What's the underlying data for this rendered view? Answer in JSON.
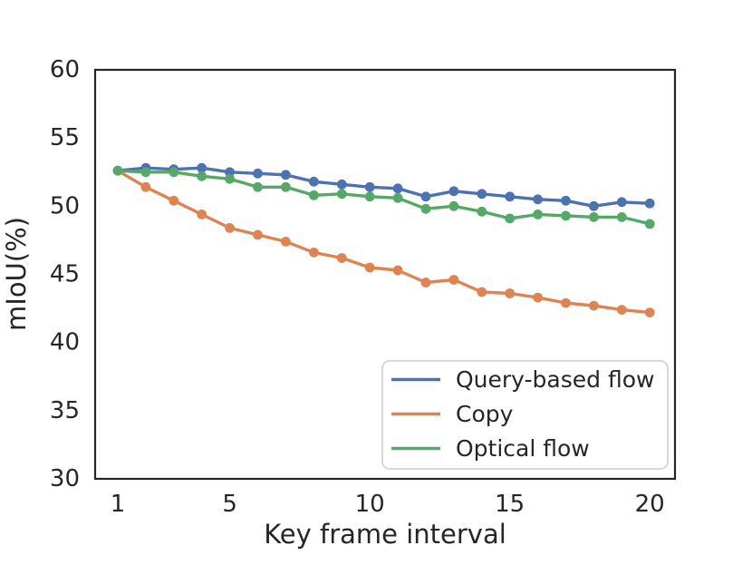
{
  "chart_data": {
    "type": "line",
    "title": "",
    "xlabel": "Key frame interval",
    "ylabel": "mIoU(%)",
    "xlim": [
      0.19,
      20.9
    ],
    "ylim": [
      30,
      60
    ],
    "xticks": [
      1,
      5,
      10,
      15,
      20
    ],
    "yticks": [
      30,
      35,
      40,
      45,
      50,
      55,
      60
    ],
    "grid": false,
    "legend_position": "lower right",
    "x": [
      1,
      2,
      3,
      4,
      5,
      6,
      7,
      8,
      9,
      10,
      11,
      12,
      13,
      14,
      15,
      16,
      17,
      18,
      19,
      20
    ],
    "series": [
      {
        "name": "Query-based flow",
        "color": "#4C72B0",
        "values": [
          52.6,
          52.8,
          52.7,
          52.8,
          52.5,
          52.4,
          52.3,
          51.8,
          51.6,
          51.4,
          51.3,
          50.7,
          51.1,
          50.9,
          50.7,
          50.5,
          50.4,
          50.0,
          50.3,
          50.2
        ]
      },
      {
        "name": "Copy",
        "color": "#DD8452",
        "values": [
          52.6,
          51.4,
          50.4,
          49.4,
          48.4,
          47.9,
          47.4,
          46.6,
          46.2,
          45.5,
          45.3,
          44.4,
          44.6,
          43.7,
          43.6,
          43.3,
          42.9,
          42.7,
          42.4,
          42.2
        ]
      },
      {
        "name": "Optical flow",
        "color": "#55A868",
        "values": [
          52.6,
          52.5,
          52.5,
          52.2,
          52.0,
          51.4,
          51.4,
          50.8,
          50.9,
          50.7,
          50.6,
          49.8,
          50.0,
          49.6,
          49.1,
          49.4,
          49.3,
          49.2,
          49.2,
          48.7
        ]
      }
    ],
    "style": {
      "axes_edge_color": "#262626",
      "text_color": "#262626",
      "legend_border_color": "#cccccc",
      "background_color": "#ffffff"
    }
  }
}
